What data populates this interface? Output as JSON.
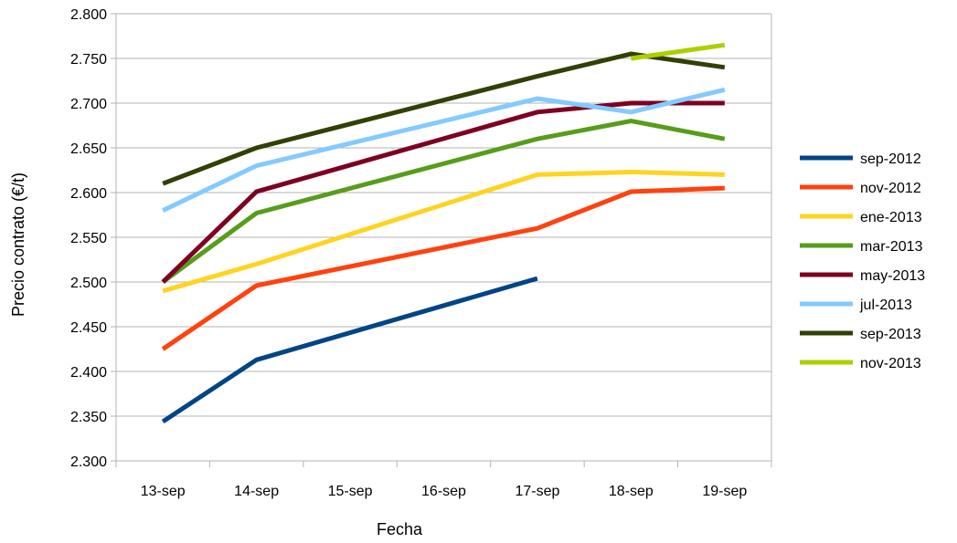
{
  "chart_data": {
    "type": "line",
    "title": "",
    "xlabel": "Fecha",
    "ylabel": "Precio contrato (€/t)",
    "categories": [
      "13-sep",
      "14-sep",
      "15-sep",
      "16-sep",
      "17-sep",
      "18-sep",
      "19-sep"
    ],
    "ylim": [
      2300,
      2800
    ],
    "yticks": [
      2300,
      2350,
      2400,
      2450,
      2500,
      2550,
      2600,
      2650,
      2700,
      2750,
      2800
    ],
    "ytick_labels": [
      "2.300",
      "2.350",
      "2.400",
      "2.450",
      "2.500",
      "2.550",
      "2.600",
      "2.650",
      "2.700",
      "2.750",
      "2.800"
    ],
    "grid": "horizontal",
    "legend_position": "right",
    "series": [
      {
        "name": "sep-2012",
        "color": "#004586",
        "values": [
          2344,
          2413,
          null,
          null,
          2504,
          null,
          null
        ]
      },
      {
        "name": "nov-2012",
        "color": "#ff420e",
        "values": [
          2425,
          2496,
          null,
          null,
          2560,
          2601,
          2605
        ]
      },
      {
        "name": "ene-2013",
        "color": "#ffd320",
        "values": [
          2490,
          2520,
          null,
          null,
          2620,
          2623,
          2620
        ]
      },
      {
        "name": "mar-2013",
        "color": "#579d1c",
        "values": [
          2500,
          2577,
          null,
          null,
          2660,
          2680,
          2660
        ]
      },
      {
        "name": "may-2013",
        "color": "#7e0021",
        "values": [
          2500,
          2601,
          null,
          null,
          2690,
          2700,
          2700
        ]
      },
      {
        "name": "jul-2013",
        "color": "#83caff",
        "values": [
          2580,
          2630,
          null,
          null,
          2705,
          2690,
          2715
        ]
      },
      {
        "name": "sep-2013",
        "color": "#314004",
        "values": [
          2610,
          2650,
          null,
          null,
          2730,
          2755,
          2740
        ]
      },
      {
        "name": "nov-2013",
        "color": "#aecf00",
        "values": [
          null,
          null,
          null,
          null,
          null,
          2750,
          2765
        ]
      }
    ]
  }
}
